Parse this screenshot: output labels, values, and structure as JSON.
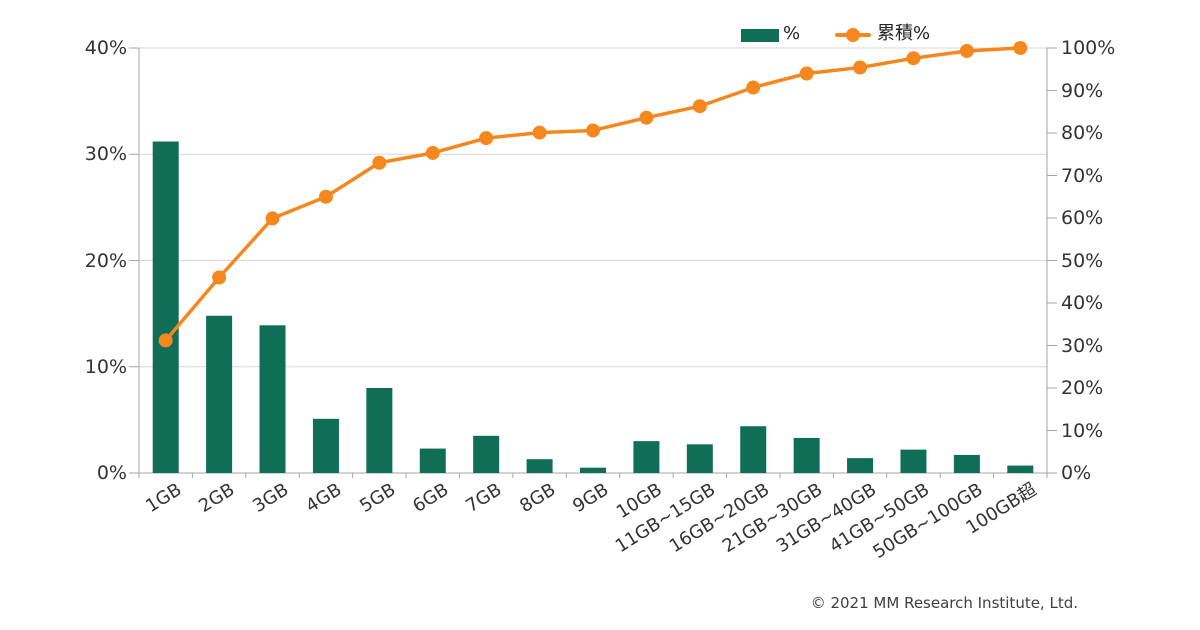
{
  "legend": {
    "bar_label": "%",
    "line_label": "累積%"
  },
  "footer": {
    "copyright": "© 2021 MM Research Institute, Ltd."
  },
  "colors": {
    "bar_green": "#106E57",
    "line_orange": "#F6871F",
    "grid": "#D7D7D7",
    "axis": "#A6A6A6",
    "label_text": "#333333"
  },
  "chart_data": {
    "type": "bar",
    "subtype": "pareto-combo-bar-line",
    "title": "",
    "xlabel": "",
    "ylabel_left": "%",
    "ylabel_right": "累積%",
    "categories": [
      "1GB",
      "2GB",
      "3GB",
      "4GB",
      "5GB",
      "6GB",
      "7GB",
      "8GB",
      "9GB",
      "10GB",
      "11GB~15GB",
      "16GB~20GB",
      "21GB~30GB",
      "31GB~40GB",
      "41GB~50GB",
      "50GB~100GB",
      "100GB超"
    ],
    "series": [
      {
        "name": "%",
        "type": "bar",
        "axis": "left",
        "values": [
          31.2,
          14.8,
          13.9,
          5.1,
          8.0,
          2.3,
          3.5,
          1.3,
          0.5,
          3.0,
          2.7,
          4.4,
          3.3,
          1.4,
          2.2,
          1.7,
          0.7
        ]
      },
      {
        "name": "累積%",
        "type": "line",
        "axis": "right",
        "values": [
          31.2,
          46.0,
          59.9,
          65.0,
          73.0,
          75.3,
          78.8,
          80.1,
          80.6,
          83.6,
          86.3,
          90.7,
          94.0,
          95.4,
          97.6,
          99.3,
          100.0
        ]
      }
    ],
    "left_axis": {
      "range": [
        0,
        40
      ],
      "ticks": [
        "0%",
        "10%",
        "20%",
        "30%",
        "40%"
      ]
    },
    "right_axis": {
      "range": [
        0,
        100
      ],
      "ticks": [
        "0%",
        "10%",
        "20%",
        "30%",
        "40%",
        "50%",
        "60%",
        "70%",
        "80%",
        "90%",
        "100%"
      ]
    },
    "grid": true,
    "legend_position": "top-right"
  }
}
